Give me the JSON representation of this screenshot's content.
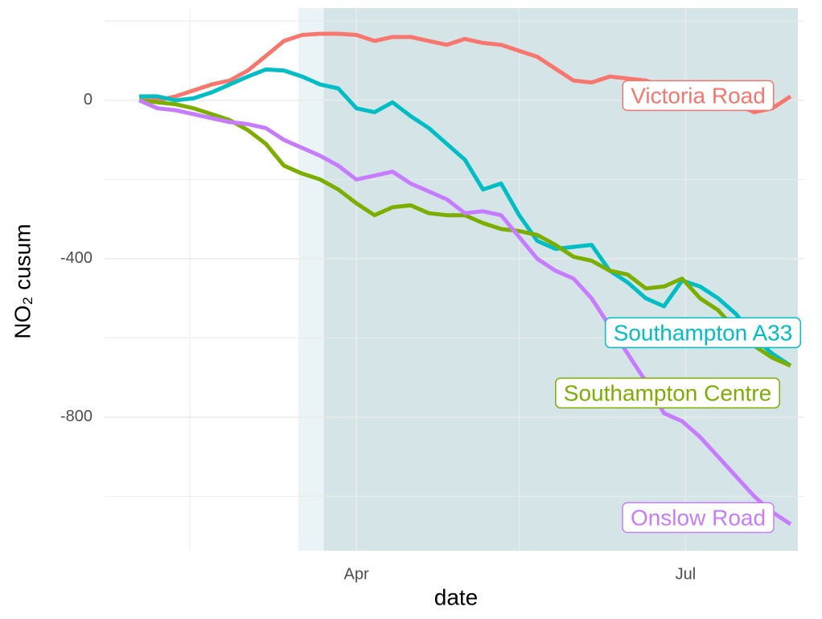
{
  "chart_data": {
    "type": "line",
    "xlabel": "date",
    "ylabel": "NO₂ cusum",
    "x": [
      32,
      37,
      42,
      47,
      52,
      57,
      62,
      67,
      72,
      77,
      82,
      87,
      92,
      97,
      102,
      107,
      112,
      117,
      122,
      127,
      132,
      137,
      142,
      147,
      152,
      157,
      162,
      167,
      172,
      177,
      182,
      187,
      192,
      197,
      202,
      207,
      212
    ],
    "series": [
      {
        "name": "Victoria Road",
        "color": "#F8766D",
        "values": [
          0,
          0,
          10,
          25,
          40,
          50,
          75,
          112,
          150,
          165,
          168,
          168,
          165,
          150,
          160,
          160,
          150,
          140,
          155,
          145,
          140,
          125,
          110,
          80,
          50,
          45,
          60,
          55,
          50,
          35,
          20,
          10,
          5,
          -10,
          -30,
          -20,
          10
        ]
      },
      {
        "name": "Southampton A33",
        "color": "#00BFC4",
        "values": [
          10,
          10,
          0,
          5,
          20,
          40,
          60,
          78,
          75,
          60,
          40,
          30,
          -20,
          -30,
          -5,
          -40,
          -70,
          -110,
          -150,
          -225,
          -210,
          -290,
          -355,
          -375,
          -370,
          -365,
          -430,
          -460,
          -500,
          -520,
          -455,
          -470,
          -500,
          -540,
          -600,
          -640,
          -670
        ]
      },
      {
        "name": "Southampton Centre",
        "color": "#7CAE00",
        "values": [
          0,
          -5,
          -10,
          -20,
          -35,
          -50,
          -75,
          -110,
          -165,
          -185,
          -200,
          -225,
          -260,
          -290,
          -270,
          -265,
          -285,
          -290,
          -290,
          -310,
          -325,
          -330,
          -340,
          -365,
          -395,
          -405,
          -430,
          -440,
          -475,
          -470,
          -450,
          -500,
          -530,
          -580,
          -620,
          -650,
          -670
        ]
      },
      {
        "name": "Onslow Road",
        "color": "#C77CFF",
        "values": [
          0,
          -20,
          -25,
          -35,
          -45,
          -55,
          -60,
          -70,
          -100,
          -120,
          -140,
          -165,
          -200,
          -190,
          -180,
          -210,
          -230,
          -250,
          -285,
          -280,
          -290,
          -345,
          -400,
          -430,
          -450,
          -500,
          -570,
          -640,
          -710,
          -790,
          -810,
          -850,
          -900,
          -950,
          -1000,
          -1040,
          -1070
        ]
      }
    ],
    "shaded_ranges": [
      {
        "start": 76,
        "end": 214,
        "color": "#eaf3f6"
      },
      {
        "start": 83,
        "end": 214,
        "color": "#d5e5e7"
      }
    ],
    "xlim": [
      22.4,
      215.8
    ],
    "xticks": [
      {
        "value": 92,
        "label": "Apr"
      },
      {
        "value": 183,
        "label": "Jul"
      }
    ],
    "x_minor_ticks": [
      46,
      137
    ],
    "ylim": [
      -1137,
      233
    ],
    "yticks": [
      0,
      -400,
      -800
    ],
    "y_minor_ticks": [
      200,
      -200,
      -600,
      -1000
    ],
    "grid": true
  }
}
